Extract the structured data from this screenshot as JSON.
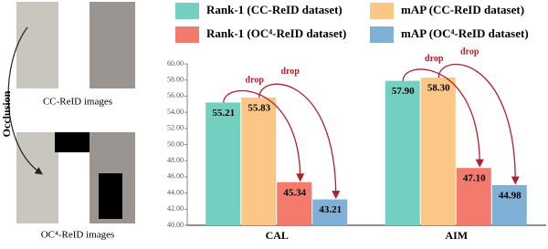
{
  "side_panel": {
    "label": "Occlusion",
    "top_caption": "CC-ReID images",
    "bottom_caption": "OC⁴-ReID images"
  },
  "chart_data": {
    "type": "bar",
    "categories": [
      "CAL",
      "AIM"
    ],
    "series": [
      {
        "name": "Rank-1 (CC-ReID dataset)",
        "color": "#73cfbf",
        "values": [
          55.21,
          57.9
        ],
        "value_labels": [
          "55.21",
          "57.90"
        ]
      },
      {
        "name": "mAP (CC-ReID dataset)",
        "color": "#fcc687",
        "values": [
          55.83,
          58.3
        ],
        "value_labels": [
          "55.83",
          "58.30"
        ]
      },
      {
        "name": "Rank-1 (OC⁴-ReID dataset)",
        "color": "#f37b6e",
        "values": [
          45.34,
          47.1
        ],
        "value_labels": [
          "45.34",
          "47.10"
        ]
      },
      {
        "name": "mAP (OC⁴-ReID dataset)",
        "color": "#7fb0d6",
        "values": [
          43.21,
          44.98
        ],
        "value_labels": [
          "43.21",
          "44.98"
        ]
      }
    ],
    "annotations": [
      "drop",
      "drop",
      "drop",
      "drop"
    ],
    "ylim": [
      40,
      60
    ],
    "yticks": [
      {
        "value": 40,
        "label": "40.00"
      },
      {
        "value": 42,
        "label": "42.00"
      },
      {
        "value": 44,
        "label": "44.00"
      },
      {
        "value": 46,
        "label": "46.00"
      },
      {
        "value": 48,
        "label": "48.00"
      },
      {
        "value": 50,
        "label": "50.00"
      },
      {
        "value": 52,
        "label": "52.00"
      },
      {
        "value": 54,
        "label": "54.00"
      },
      {
        "value": 56,
        "label": "56.00"
      },
      {
        "value": 58,
        "label": "58.00"
      },
      {
        "value": 60,
        "label": "60.00"
      }
    ],
    "grid": false
  }
}
